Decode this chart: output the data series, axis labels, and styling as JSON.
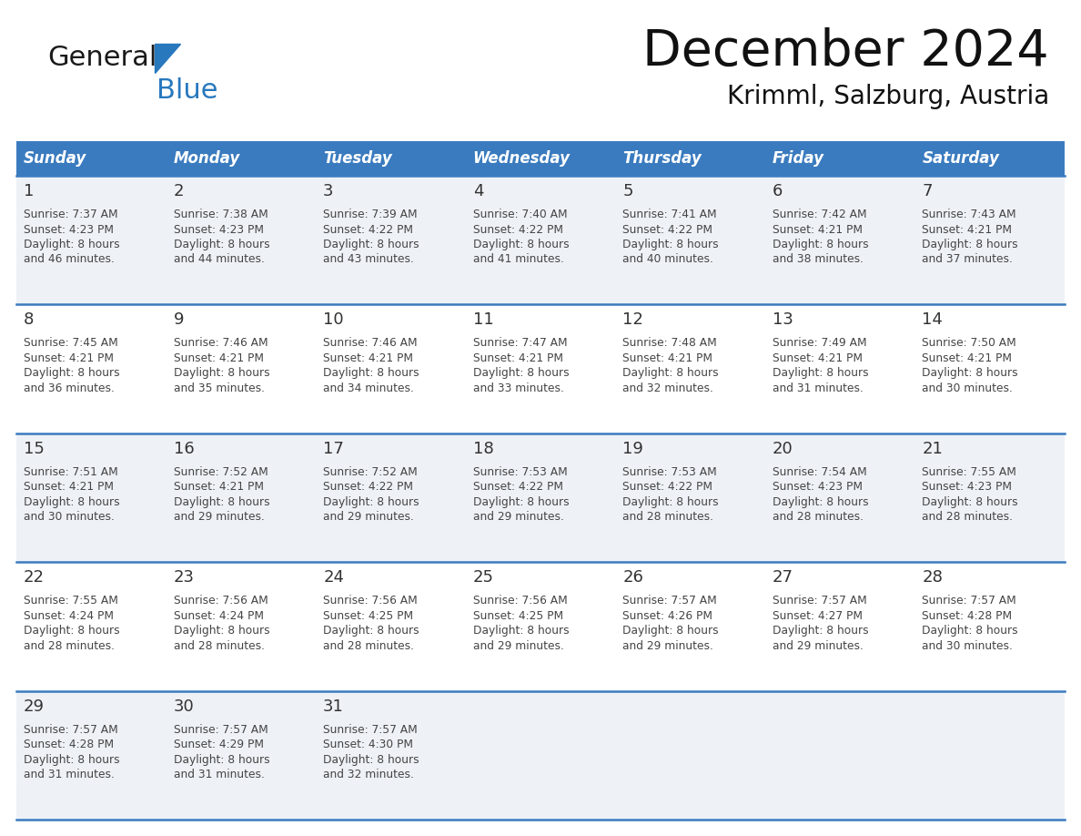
{
  "title": "December 2024",
  "subtitle": "Krimml, Salzburg, Austria",
  "header_bg": "#3a7bbf",
  "header_text": "#ffffff",
  "row_bg_odd": "#eef2f7",
  "row_bg_even": "#ffffff",
  "day_names": [
    "Sunday",
    "Monday",
    "Tuesday",
    "Wednesday",
    "Thursday",
    "Friday",
    "Saturday"
  ],
  "days": [
    {
      "day": 1,
      "col": 0,
      "row": 0,
      "sunrise": "7:37 AM",
      "sunset": "4:23 PM",
      "daylight": "8 hours and 46 minutes."
    },
    {
      "day": 2,
      "col": 1,
      "row": 0,
      "sunrise": "7:38 AM",
      "sunset": "4:23 PM",
      "daylight": "8 hours and 44 minutes."
    },
    {
      "day": 3,
      "col": 2,
      "row": 0,
      "sunrise": "7:39 AM",
      "sunset": "4:22 PM",
      "daylight": "8 hours and 43 minutes."
    },
    {
      "day": 4,
      "col": 3,
      "row": 0,
      "sunrise": "7:40 AM",
      "sunset": "4:22 PM",
      "daylight": "8 hours and 41 minutes."
    },
    {
      "day": 5,
      "col": 4,
      "row": 0,
      "sunrise": "7:41 AM",
      "sunset": "4:22 PM",
      "daylight": "8 hours and 40 minutes."
    },
    {
      "day": 6,
      "col": 5,
      "row": 0,
      "sunrise": "7:42 AM",
      "sunset": "4:21 PM",
      "daylight": "8 hours and 38 minutes."
    },
    {
      "day": 7,
      "col": 6,
      "row": 0,
      "sunrise": "7:43 AM",
      "sunset": "4:21 PM",
      "daylight": "8 hours and 37 minutes."
    },
    {
      "day": 8,
      "col": 0,
      "row": 1,
      "sunrise": "7:45 AM",
      "sunset": "4:21 PM",
      "daylight": "8 hours and 36 minutes."
    },
    {
      "day": 9,
      "col": 1,
      "row": 1,
      "sunrise": "7:46 AM",
      "sunset": "4:21 PM",
      "daylight": "8 hours and 35 minutes."
    },
    {
      "day": 10,
      "col": 2,
      "row": 1,
      "sunrise": "7:46 AM",
      "sunset": "4:21 PM",
      "daylight": "8 hours and 34 minutes."
    },
    {
      "day": 11,
      "col": 3,
      "row": 1,
      "sunrise": "7:47 AM",
      "sunset": "4:21 PM",
      "daylight": "8 hours and 33 minutes."
    },
    {
      "day": 12,
      "col": 4,
      "row": 1,
      "sunrise": "7:48 AM",
      "sunset": "4:21 PM",
      "daylight": "8 hours and 32 minutes."
    },
    {
      "day": 13,
      "col": 5,
      "row": 1,
      "sunrise": "7:49 AM",
      "sunset": "4:21 PM",
      "daylight": "8 hours and 31 minutes."
    },
    {
      "day": 14,
      "col": 6,
      "row": 1,
      "sunrise": "7:50 AM",
      "sunset": "4:21 PM",
      "daylight": "8 hours and 30 minutes."
    },
    {
      "day": 15,
      "col": 0,
      "row": 2,
      "sunrise": "7:51 AM",
      "sunset": "4:21 PM",
      "daylight": "8 hours and 30 minutes."
    },
    {
      "day": 16,
      "col": 1,
      "row": 2,
      "sunrise": "7:52 AM",
      "sunset": "4:21 PM",
      "daylight": "8 hours and 29 minutes."
    },
    {
      "day": 17,
      "col": 2,
      "row": 2,
      "sunrise": "7:52 AM",
      "sunset": "4:22 PM",
      "daylight": "8 hours and 29 minutes."
    },
    {
      "day": 18,
      "col": 3,
      "row": 2,
      "sunrise": "7:53 AM",
      "sunset": "4:22 PM",
      "daylight": "8 hours and 29 minutes."
    },
    {
      "day": 19,
      "col": 4,
      "row": 2,
      "sunrise": "7:53 AM",
      "sunset": "4:22 PM",
      "daylight": "8 hours and 28 minutes."
    },
    {
      "day": 20,
      "col": 5,
      "row": 2,
      "sunrise": "7:54 AM",
      "sunset": "4:23 PM",
      "daylight": "8 hours and 28 minutes."
    },
    {
      "day": 21,
      "col": 6,
      "row": 2,
      "sunrise": "7:55 AM",
      "sunset": "4:23 PM",
      "daylight": "8 hours and 28 minutes."
    },
    {
      "day": 22,
      "col": 0,
      "row": 3,
      "sunrise": "7:55 AM",
      "sunset": "4:24 PM",
      "daylight": "8 hours and 28 minutes."
    },
    {
      "day": 23,
      "col": 1,
      "row": 3,
      "sunrise": "7:56 AM",
      "sunset": "4:24 PM",
      "daylight": "8 hours and 28 minutes."
    },
    {
      "day": 24,
      "col": 2,
      "row": 3,
      "sunrise": "7:56 AM",
      "sunset": "4:25 PM",
      "daylight": "8 hours and 28 minutes."
    },
    {
      "day": 25,
      "col": 3,
      "row": 3,
      "sunrise": "7:56 AM",
      "sunset": "4:25 PM",
      "daylight": "8 hours and 29 minutes."
    },
    {
      "day": 26,
      "col": 4,
      "row": 3,
      "sunrise": "7:57 AM",
      "sunset": "4:26 PM",
      "daylight": "8 hours and 29 minutes."
    },
    {
      "day": 27,
      "col": 5,
      "row": 3,
      "sunrise": "7:57 AM",
      "sunset": "4:27 PM",
      "daylight": "8 hours and 29 minutes."
    },
    {
      "day": 28,
      "col": 6,
      "row": 3,
      "sunrise": "7:57 AM",
      "sunset": "4:28 PM",
      "daylight": "8 hours and 30 minutes."
    },
    {
      "day": 29,
      "col": 0,
      "row": 4,
      "sunrise": "7:57 AM",
      "sunset": "4:28 PM",
      "daylight": "8 hours and 31 minutes."
    },
    {
      "day": 30,
      "col": 1,
      "row": 4,
      "sunrise": "7:57 AM",
      "sunset": "4:29 PM",
      "daylight": "8 hours and 31 minutes."
    },
    {
      "day": 31,
      "col": 2,
      "row": 4,
      "sunrise": "7:57 AM",
      "sunset": "4:30 PM",
      "daylight": "8 hours and 32 minutes."
    }
  ],
  "logo_color1": "#1a1a1a",
  "logo_color2": "#2878be",
  "divider_color": "#3a7bbf",
  "cell_text_color": "#444444",
  "day_num_color": "#333333",
  "fig_width": 11.88,
  "fig_height": 9.18,
  "dpi": 100
}
